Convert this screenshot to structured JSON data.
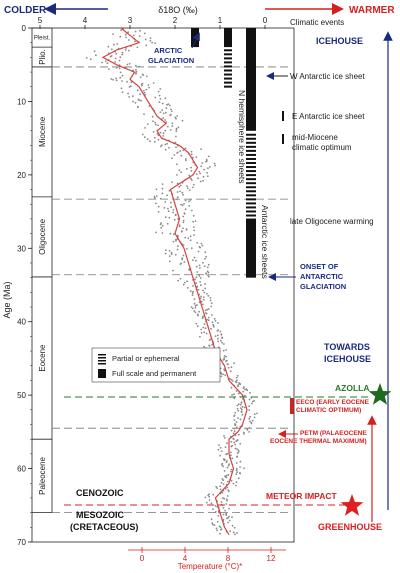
{
  "header": {
    "colder": "COLDER",
    "warmer": "WARMER",
    "d18o_label": "δ18O (‰)",
    "climatic_events": "Climatic events"
  },
  "axes": {
    "y_label": "Age (Ma)",
    "x_bottom_label": "Temperature (°C)*",
    "d18o_ticks": [
      "5",
      "4",
      "3",
      "2",
      "1",
      "0"
    ],
    "age_ticks": [
      "0",
      "10",
      "20",
      "30",
      "40",
      "50",
      "60",
      "70"
    ],
    "temp_ticks": [
      "0",
      "4",
      "8",
      "12"
    ]
  },
  "epochs": [
    "Pleist.",
    "Plio.",
    "Miocene",
    "Oligocene",
    "Eocene",
    "Paleocene"
  ],
  "ice_sheets": {
    "n_hemisphere": "N hemisphere ice sheets",
    "antarctic": "Antarctic ice sheets"
  },
  "legend": {
    "partial": "Partial or ephemeral",
    "full": "Full scale and permanent"
  },
  "annotations": {
    "arctic_glaciation_1": "ARCTIC",
    "arctic_glaciation_2": "GLACIATION",
    "icehouse": "ICEHOUSE",
    "w_antarctic": "W Antarctic ice sheet",
    "e_antarctic": "E Antarctic ice sheet",
    "mid_miocene_1": "mid-Miocene",
    "mid_miocene_2": "climatic optimum",
    "late_oligocene": "late Oligocene warming",
    "onset_1": "ONSET OF",
    "onset_2": "ANTARCTIC",
    "onset_3": "GLACIATION",
    "towards_1": "TOWARDS",
    "towards_2": "ICEHOUSE",
    "azolla": "AZOLLA",
    "eeco_1": "EECO (EARLY EOCENE",
    "eeco_2": "CLIMATIC OPTIMUM)",
    "petm_1": "PETM (PALAEOCENE",
    "petm_2": "EOCENE THERMAL MAXIMUM)",
    "cenozoic": "CENOZOIC",
    "mesozoic": "MESOZOIC",
    "cretaceous": "(CRETACEOUS)",
    "meteor": "METEOR IMPACT",
    "greenhouse": "GREENHOUSE"
  },
  "colors": {
    "blue": "#1a2a80",
    "red": "#d42020",
    "green": "#2a7a2a",
    "data_grey": "#8a8a8a",
    "trend": "#d84040"
  },
  "chart_data": {
    "type": "scatter",
    "xlabel": "δ18O (‰)",
    "ylabel": "Age (Ma)",
    "xlim": [
      5.5,
      -0.5
    ],
    "ylim": [
      0,
      70
    ],
    "series": [
      {
        "name": "",
        "x": [
          3.2,
          3.0,
          2.8,
          3.3,
          3.6,
          3.3,
          2.9,
          3.0,
          2.8,
          2.7,
          2.6,
          2.5,
          2.4,
          2.2,
          2.4,
          2.3,
          1.9,
          1.7,
          1.6,
          1.5,
          1.6,
          2.1,
          2.0,
          1.9,
          2.0,
          1.8,
          1.7,
          1.6,
          1.5,
          1.4,
          1.3,
          1.2,
          1.1,
          0.9,
          0.8,
          0.5,
          0.4,
          0.5,
          0.6,
          0.8,
          0.8,
          0.7,
          0.8,
          1.1,
          1.0,
          0.9,
          0.8
        ],
        "y": [
          0,
          1,
          2,
          3,
          4,
          5,
          6,
          7,
          8,
          9,
          10,
          11,
          12,
          13,
          14,
          15,
          16,
          17,
          18,
          19,
          20,
          22,
          24,
          26,
          28,
          30,
          32,
          34,
          36,
          38,
          40,
          42,
          44,
          46,
          48,
          50,
          52,
          54,
          55,
          56,
          58,
          60,
          62,
          64,
          66,
          68,
          69
        ]
      }
    ]
  }
}
